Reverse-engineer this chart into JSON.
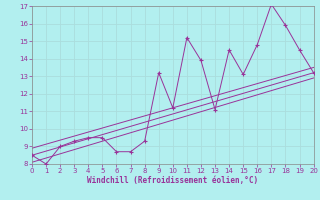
{
  "xlabel": "Windchill (Refroidissement éolien,°C)",
  "xlim": [
    0,
    20
  ],
  "ylim": [
    8,
    17
  ],
  "xticks": [
    0,
    1,
    2,
    3,
    4,
    5,
    6,
    7,
    8,
    9,
    10,
    11,
    12,
    13,
    14,
    15,
    16,
    17,
    18,
    19,
    20
  ],
  "yticks": [
    8,
    9,
    10,
    11,
    12,
    13,
    14,
    15,
    16,
    17
  ],
  "line_color": "#993399",
  "bg_color": "#b2efef",
  "grid_color": "#aadddd",
  "main_x": [
    0,
    1,
    2,
    3,
    4,
    5,
    6,
    7,
    8,
    9,
    10,
    11,
    12,
    13,
    14,
    15,
    16,
    17,
    18,
    19,
    20
  ],
  "main_y": [
    8.5,
    8.0,
    9.0,
    9.3,
    9.5,
    9.5,
    8.7,
    8.7,
    9.3,
    13.2,
    11.2,
    15.2,
    13.9,
    11.1,
    14.5,
    13.1,
    14.8,
    17.1,
    15.9,
    14.5,
    13.2
  ],
  "reg_lines": [
    {
      "x0": 0,
      "y0": 8.1,
      "x1": 20,
      "y1": 12.9
    },
    {
      "x0": 0,
      "y0": 8.5,
      "x1": 20,
      "y1": 13.2
    },
    {
      "x0": 0,
      "y0": 8.9,
      "x1": 20,
      "y1": 13.5
    }
  ]
}
